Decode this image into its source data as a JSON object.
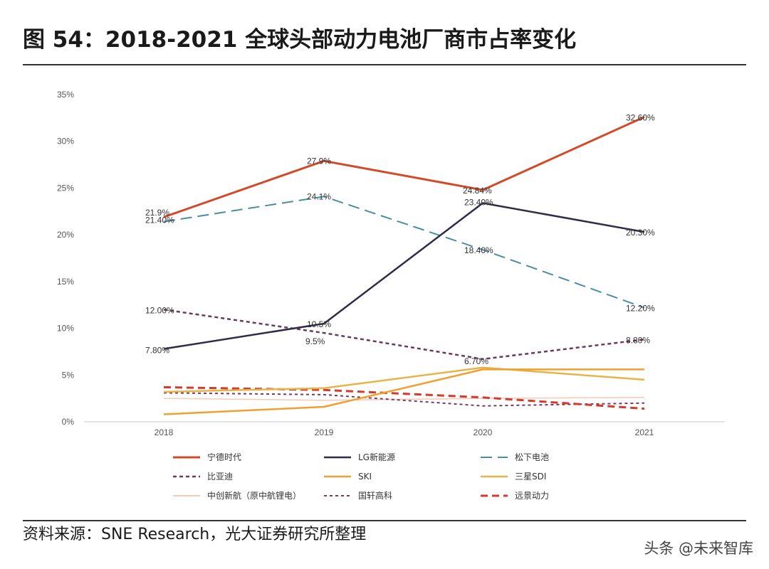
{
  "header": {
    "title": "图 54：2018-2021 全球头部动力电池厂商市占率变化"
  },
  "footer": {
    "source": "资料来源：SNE Research，光大证券研究所整理",
    "watermark": "头条 @未来智库"
  },
  "chart_data": {
    "type": "line",
    "title": "图 54：2018-2021 全球头部动力电池厂商市占率变化",
    "xlabel": "",
    "ylabel": "",
    "categories": [
      "2018",
      "2019",
      "2020",
      "2021"
    ],
    "ylim": [
      0,
      35
    ],
    "yticks": [
      0,
      5,
      10,
      15,
      20,
      25,
      30,
      35
    ],
    "ytick_labels": [
      "0%",
      "5%",
      "10%",
      "15%",
      "20%",
      "25%",
      "30%",
      "35%"
    ],
    "legend_position": "bottom",
    "series": [
      {
        "name": "宁德时代",
        "values": [
          21.9,
          27.9,
          24.8,
          32.6
        ],
        "color": "#d24a2a",
        "dash": "",
        "width": 3,
        "labels": [
          "21.9%",
          "27.9%",
          "24.84%",
          "32.60%"
        ]
      },
      {
        "name": "LG新能源",
        "values": [
          7.8,
          10.5,
          23.4,
          20.3
        ],
        "color": "#2e2d48",
        "dash": "",
        "width": 2.5,
        "labels": [
          "7.80%",
          "10.5%",
          "23.40%",
          "20.30%"
        ]
      },
      {
        "name": "松下电池",
        "values": [
          21.4,
          24.1,
          18.4,
          12.2
        ],
        "color": "#4a8ea0",
        "dash": "16,8",
        "width": 2,
        "labels": [
          "21.40%",
          "24.1%",
          "18.40%",
          "12.20%"
        ]
      },
      {
        "name": "比亚迪",
        "values": [
          12.0,
          9.5,
          6.7,
          8.8
        ],
        "color": "#6b3a5a",
        "dash": "5,4",
        "width": 2.5,
        "labels": [
          "12.00%",
          "9.5%",
          "6.70%",
          "8.80%"
        ]
      },
      {
        "name": "SKI",
        "values": [
          0.8,
          1.6,
          5.6,
          5.6
        ],
        "color": "#f0a030",
        "dash": "",
        "width": 2.5,
        "labels": []
      },
      {
        "name": "三星SDI",
        "values": [
          3.2,
          3.6,
          5.8,
          4.5
        ],
        "color": "#e8b44a",
        "dash": "",
        "width": 2.5,
        "labels": []
      },
      {
        "name": "中创新航（原中航锂电）",
        "values": [
          2.5,
          2.3,
          2.5,
          2.6
        ],
        "color": "#f5c8b8",
        "dash": "",
        "width": 1.5,
        "labels": []
      },
      {
        "name": "国轩高科",
        "values": [
          3.1,
          2.9,
          1.7,
          2.0
        ],
        "color": "#7a3a5a",
        "dash": "4,4",
        "width": 2,
        "labels": []
      },
      {
        "name": "远景动力",
        "values": [
          3.7,
          3.4,
          2.6,
          1.4
        ],
        "color": "#d63a2a",
        "dash": "10,6",
        "width": 3,
        "labels": []
      }
    ]
  }
}
